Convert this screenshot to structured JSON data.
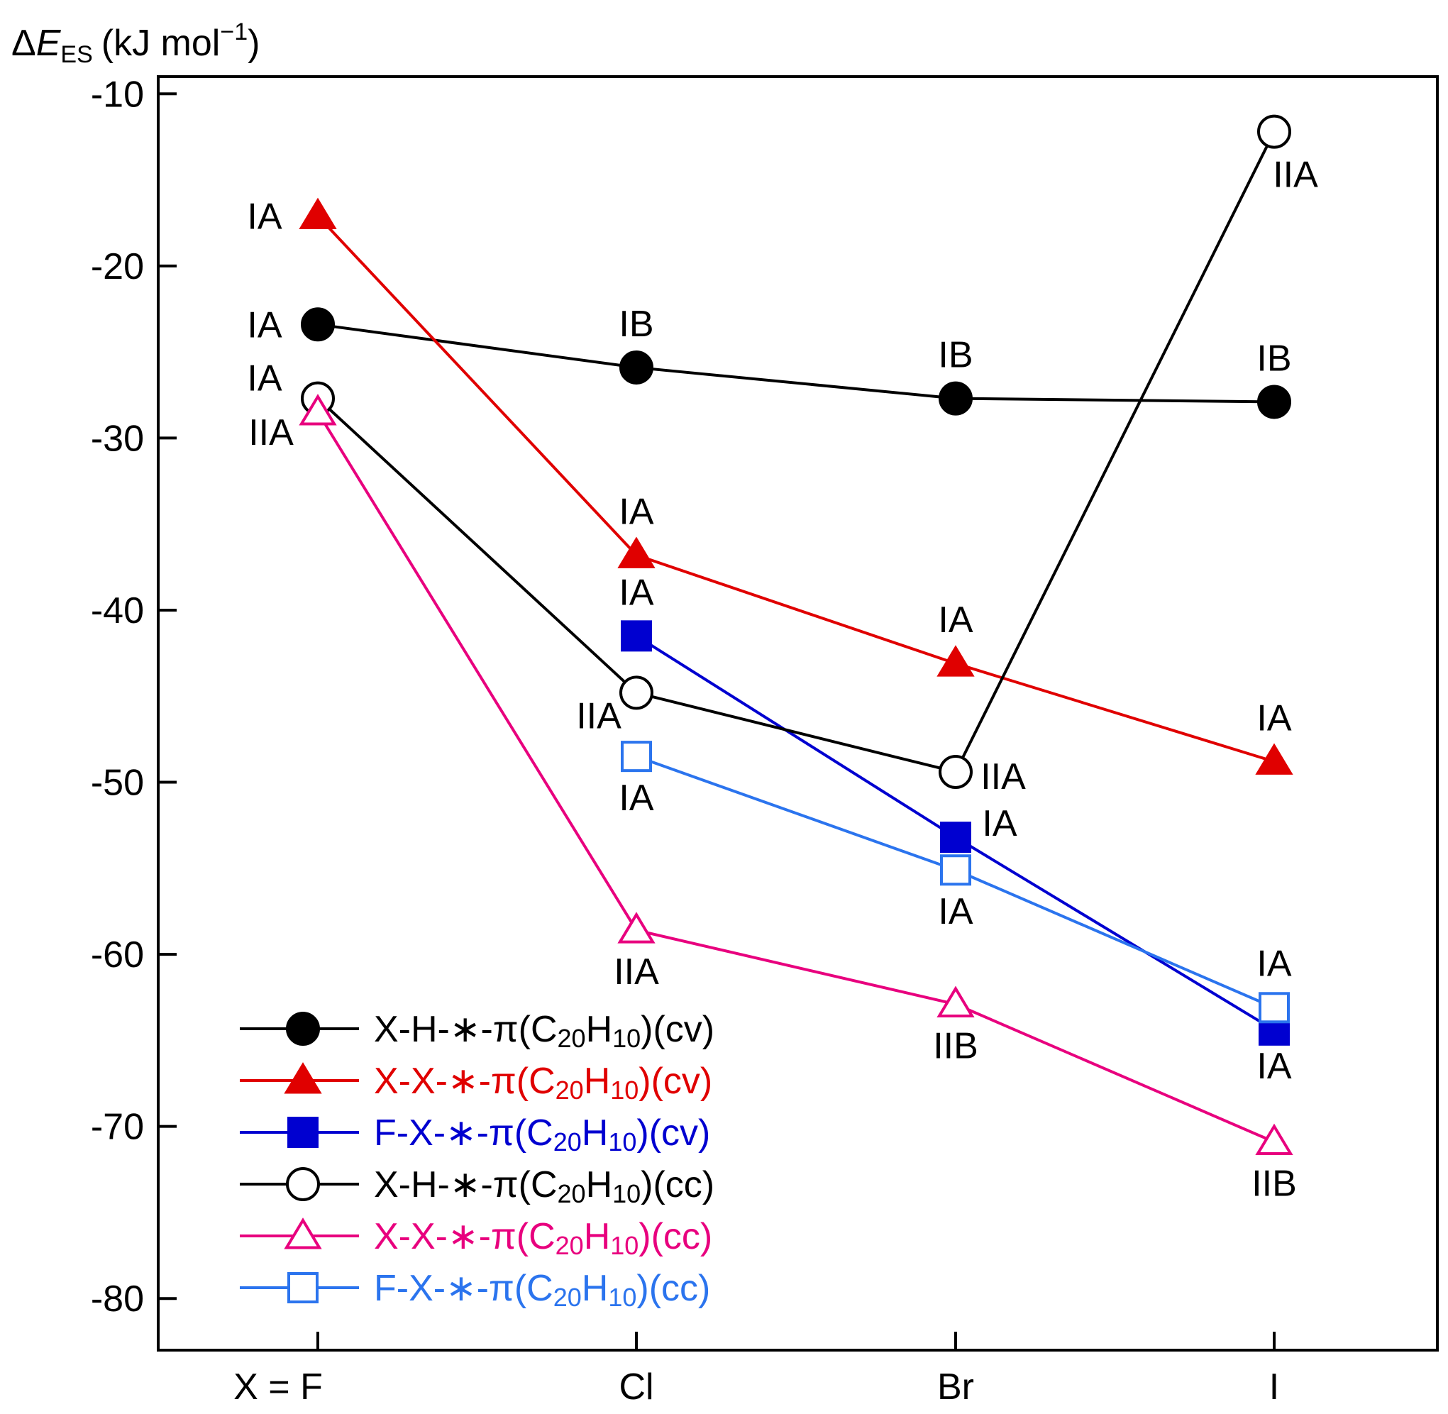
{
  "chart_data": {
    "type": "line",
    "ylabel": {
      "delta": "Δ",
      "symbol": "E",
      "sub": "ES",
      "units": "(kJ mol",
      "exp": "−1",
      "close": ")"
    },
    "ylim": [
      -83,
      -9
    ],
    "yticks": [
      -80,
      -70,
      -60,
      -50,
      -40,
      -30,
      -20,
      -10
    ],
    "categories": [
      "X = F",
      "Cl",
      "Br",
      "I"
    ],
    "series": [
      {
        "name": "X-H-∗-π(C20H10)(cv)",
        "prefix": "X-H-∗-π(C",
        "sub1": "20",
        "mid": "H",
        "sub2": "10",
        "suffix": ")(cv)",
        "color": "#000000",
        "marker": "circle",
        "filled": true,
        "values": [
          -23.4,
          -25.9,
          -27.7,
          -27.9
        ],
        "labels": [
          "IA",
          "IB",
          "IB",
          "IB"
        ]
      },
      {
        "name": "X-X-∗-π(C20H10)(cv)",
        "prefix": "X-X-∗-π(C",
        "sub1": "20",
        "mid": "H",
        "sub2": "10",
        "suffix": ")(cv)",
        "color": "#e00000",
        "marker": "triangle",
        "filled": true,
        "values": [
          -17.1,
          -36.8,
          -43.1,
          -48.8
        ],
        "labels": [
          "IA",
          "IA",
          "IA",
          "IA"
        ]
      },
      {
        "name": "F-X-∗-π(C20H10)(cv)",
        "prefix": "F-X-∗-π(C",
        "sub1": "20",
        "mid": "H",
        "sub2": "10",
        "suffix": ")(cv)",
        "color": "#0000d0",
        "marker": "square",
        "filled": true,
        "values": [
          null,
          -41.5,
          -53.2,
          -64.4
        ],
        "labels": [
          null,
          "IA",
          "IA",
          "IA"
        ]
      },
      {
        "name": "X-H-∗-π(C20H10)(cc)",
        "prefix": "X-H-∗-π(C",
        "sub1": "20",
        "mid": "H",
        "sub2": "10",
        "suffix": ")(cc)",
        "color": "#000000",
        "marker": "circle",
        "filled": false,
        "values": [
          -27.7,
          -44.8,
          -49.4,
          -12.2
        ],
        "labels": [
          "IA",
          "IIA",
          "IIA",
          "IIA"
        ]
      },
      {
        "name": "X-X-∗-π(C20H10)(cc)",
        "prefix": "X-X-∗-π(C",
        "sub1": "20",
        "mid": "H",
        "sub2": "10",
        "suffix": ")(cc)",
        "color": "#e8007e",
        "marker": "triangle",
        "filled": false,
        "values": [
          -28.5,
          -58.6,
          -62.9,
          -70.9
        ],
        "labels": [
          "IIA",
          "IIA",
          "IIB",
          "IIB"
        ]
      },
      {
        "name": "F-X-∗-π(C20H10)(cc)",
        "prefix": "F-X-∗-π(C",
        "sub1": "20",
        "mid": "H",
        "sub2": "10",
        "suffix": ")(cc)",
        "color": "#2b74ee",
        "marker": "square",
        "filled": false,
        "values": [
          null,
          -48.5,
          -55.1,
          -63.1
        ],
        "labels": [
          null,
          "IA",
          "IA",
          "IA"
        ]
      }
    ],
    "legend_position": "bottom-left"
  }
}
